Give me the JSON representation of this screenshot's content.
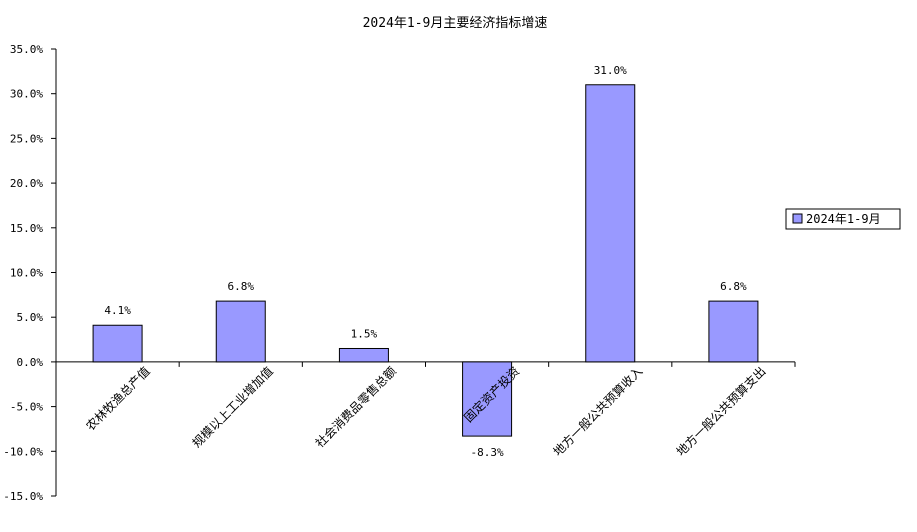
{
  "chart_data": {
    "type": "bar",
    "title": "2024年1-9月主要经济指标增速",
    "categories": [
      "农林牧渔总产值",
      "规模以上工业增加值",
      "社会消费品零售总额",
      "固定资产投资",
      "地方一般公共预算收入",
      "地方一般公共预算支出"
    ],
    "series": [
      {
        "name": "2024年1-9月",
        "values": [
          4.1,
          6.8,
          1.5,
          -8.3,
          31.0,
          6.8
        ],
        "color": "#9999ff"
      }
    ],
    "data_labels": [
      "4.1%",
      "6.8%",
      "1.5%",
      "-8.3%",
      "31.0%",
      "6.8%"
    ],
    "y_ticks": [
      35,
      30,
      25,
      20,
      15,
      10,
      5,
      0,
      -5,
      -10,
      -15
    ],
    "y_tick_labels": [
      "35.0%",
      "30.0%",
      "25.0%",
      "20.0%",
      "15.0%",
      "10.0%",
      "5.0%",
      "0.0%",
      "-5.0%",
      "-10.0%",
      "-15.0%"
    ],
    "ylim": [
      -15,
      35
    ],
    "xlabel": "",
    "ylabel": "",
    "grid": false,
    "legend_position": "right"
  }
}
